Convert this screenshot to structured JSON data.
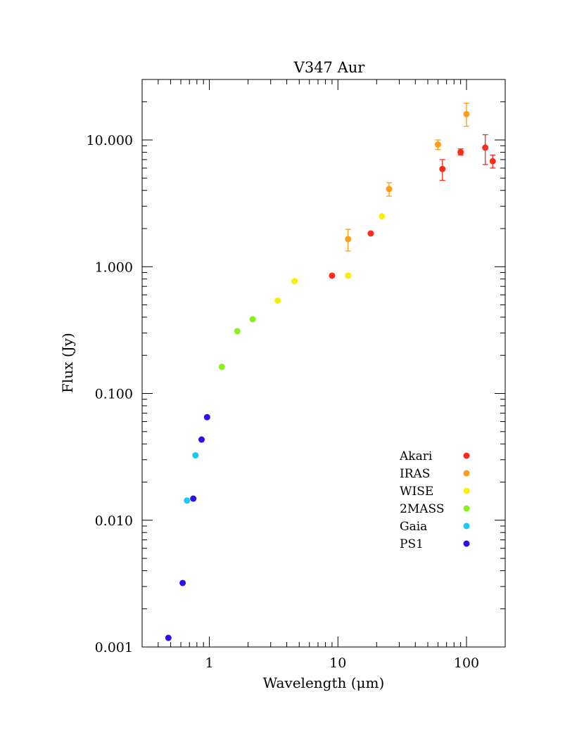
{
  "chart_data": {
    "type": "scatter",
    "title": "V347 Aur",
    "xlabel": "Wavelength (μm)",
    "ylabel": "Flux (Jy)",
    "x_scale": "log",
    "y_scale": "log",
    "xlim": [
      0.3,
      200
    ],
    "ylim": [
      0.001,
      30
    ],
    "x_ticks": [
      {
        "value": 1,
        "label": "1"
      },
      {
        "value": 10,
        "label": "10"
      },
      {
        "value": 100,
        "label": "100"
      }
    ],
    "y_ticks": [
      {
        "value": 0.001,
        "label": "0.001"
      },
      {
        "value": 0.01,
        "label": "0.010"
      },
      {
        "value": 0.1,
        "label": "0.100"
      },
      {
        "value": 1,
        "label": "1.000"
      },
      {
        "value": 10,
        "label": "10.000"
      }
    ],
    "grid": false,
    "legend_position": "bottom-right",
    "series": [
      {
        "name": "Akari",
        "color": "#ff2a1a",
        "points": [
          {
            "x": 9,
            "y": 0.85
          },
          {
            "x": 18,
            "y": 1.83
          },
          {
            "x": 65,
            "y": 5.9,
            "err_low": 4.8,
            "err_high": 7.0
          },
          {
            "x": 90,
            "y": 8.0,
            "err_low": 7.6,
            "err_high": 8.5
          },
          {
            "x": 140,
            "y": 8.7,
            "err_low": 6.4,
            "err_high": 11.0
          },
          {
            "x": 160,
            "y": 6.8,
            "err_low": 6.0,
            "err_high": 7.6
          }
        ]
      },
      {
        "name": "IRAS",
        "color": "#ff9c1a",
        "points": [
          {
            "x": 12,
            "y": 1.65,
            "err_low": 1.33,
            "err_high": 1.97
          },
          {
            "x": 25,
            "y": 4.1,
            "err_low": 3.6,
            "err_high": 4.6
          },
          {
            "x": 60,
            "y": 9.2,
            "err_low": 8.4,
            "err_high": 10.0
          },
          {
            "x": 100,
            "y": 16.0,
            "err_low": 12.8,
            "err_high": 19.5
          }
        ]
      },
      {
        "name": "WISE",
        "color": "#f8f000",
        "points": [
          {
            "x": 3.4,
            "y": 0.54
          },
          {
            "x": 4.6,
            "y": 0.77
          },
          {
            "x": 12,
            "y": 0.85
          },
          {
            "x": 22,
            "y": 2.5
          }
        ]
      },
      {
        "name": "2MASS",
        "color": "#8cf01a",
        "points": [
          {
            "x": 1.25,
            "y": 0.162
          },
          {
            "x": 1.65,
            "y": 0.31
          },
          {
            "x": 2.17,
            "y": 0.385
          }
        ]
      },
      {
        "name": "Gaia",
        "color": "#1ac8f0",
        "points": [
          {
            "x": 0.67,
            "y": 0.0143
          },
          {
            "x": 0.78,
            "y": 0.0325
          }
        ]
      },
      {
        "name": "PS1",
        "color": "#2a10f0",
        "points": [
          {
            "x": 0.48,
            "y": 0.00118
          },
          {
            "x": 0.62,
            "y": 0.0032
          },
          {
            "x": 0.75,
            "y": 0.0148
          },
          {
            "x": 0.87,
            "y": 0.0433
          },
          {
            "x": 0.96,
            "y": 0.065
          }
        ]
      }
    ]
  }
}
